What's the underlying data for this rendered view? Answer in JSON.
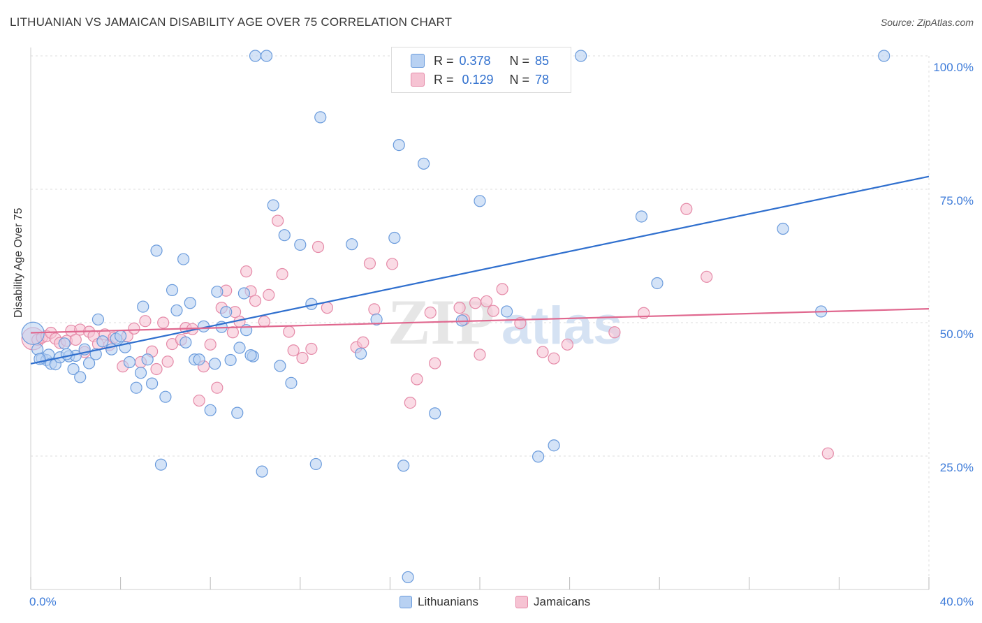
{
  "header": {
    "title": "LITHUANIAN VS JAMAICAN DISABILITY AGE OVER 75 CORRELATION CHART",
    "source": "Source: ZipAtlas.com"
  },
  "watermark": {
    "part1": "ZIP",
    "part2": "atlas"
  },
  "legend": {
    "rows": [
      {
        "r_label": "R =",
        "r_value": "0.378",
        "n_label": "N =",
        "n_value": "85"
      },
      {
        "r_label": "R =",
        "r_value": "0.129",
        "n_label": "N =",
        "n_value": "78"
      }
    ],
    "bottom": [
      "Lithuanians",
      "Jamaicans"
    ]
  },
  "colors": {
    "blue_fill": "#b8d1f2",
    "blue_stroke": "#6a9bdc",
    "blue_line": "#2f6fce",
    "pink_fill": "#f6c3d3",
    "pink_stroke": "#e58aa8",
    "pink_line": "#e0688f",
    "tick_text": "#3d7bd9"
  },
  "chart_data": {
    "type": "scatter",
    "title": "LITHUANIAN VS JAMAICAN DISABILITY AGE OVER 75 CORRELATION CHART",
    "xlabel": "",
    "ylabel": "Disability Age Over 75",
    "xlim": [
      0,
      40
    ],
    "ylim": [
      0,
      102
    ],
    "x_tick_labels": [
      "0.0%",
      "40.0%"
    ],
    "y_ticks": [
      25,
      50,
      75,
      100
    ],
    "y_tick_labels": [
      "25.0%",
      "50.0%",
      "75.0%",
      "100.0%"
    ],
    "grid": true,
    "legend_position": "top-center",
    "series": [
      {
        "name": "Lithuanians",
        "r": 0.378,
        "n": 85,
        "trend": {
          "x": [
            0,
            40
          ],
          "y": [
            42.3,
            77.4
          ]
        },
        "points": [
          [
            0.1,
            48.0
          ],
          [
            0.3,
            45.0
          ],
          [
            0.5,
            43.3
          ],
          [
            0.7,
            43.0
          ],
          [
            0.8,
            44.0
          ],
          [
            0.9,
            42.3
          ],
          [
            1.1,
            42.2
          ],
          [
            1.3,
            43.5
          ],
          [
            1.5,
            46.1
          ],
          [
            1.7,
            43.7
          ],
          [
            1.9,
            41.3
          ],
          [
            2.2,
            39.8
          ],
          [
            2.0,
            43.8
          ],
          [
            2.4,
            45.0
          ],
          [
            2.6,
            42.4
          ],
          [
            2.9,
            44.1
          ],
          [
            3.2,
            46.5
          ],
          [
            3.6,
            45.0
          ],
          [
            3.8,
            47.0
          ],
          [
            4.2,
            45.4
          ],
          [
            4.4,
            42.6
          ],
          [
            4.7,
            37.8
          ],
          [
            4.9,
            40.6
          ],
          [
            5.2,
            43.1
          ],
          [
            5.4,
            38.6
          ],
          [
            5.6,
            63.5
          ],
          [
            5.8,
            23.4
          ],
          [
            6.0,
            36.1
          ],
          [
            6.3,
            56.1
          ],
          [
            6.5,
            52.3
          ],
          [
            6.8,
            61.9
          ],
          [
            6.9,
            46.3
          ],
          [
            7.1,
            53.7
          ],
          [
            7.3,
            43.1
          ],
          [
            7.5,
            43.1
          ],
          [
            7.7,
            49.3
          ],
          [
            8.0,
            33.6
          ],
          [
            8.2,
            42.3
          ],
          [
            8.3,
            55.8
          ],
          [
            8.5,
            49.2
          ],
          [
            8.7,
            52.0
          ],
          [
            8.9,
            43.0
          ],
          [
            9.2,
            33.1
          ],
          [
            9.3,
            45.3
          ],
          [
            9.5,
            55.5
          ],
          [
            9.6,
            48.6
          ],
          [
            9.9,
            43.7
          ],
          [
            10.0,
            100.0
          ],
          [
            10.3,
            22.1
          ],
          [
            10.5,
            100.0
          ],
          [
            10.8,
            72.0
          ],
          [
            11.1,
            41.9
          ],
          [
            11.3,
            66.4
          ],
          [
            11.6,
            38.7
          ],
          [
            12.0,
            64.6
          ],
          [
            12.5,
            53.5
          ],
          [
            12.7,
            23.5
          ],
          [
            12.9,
            88.5
          ],
          [
            14.3,
            64.7
          ],
          [
            14.7,
            44.2
          ],
          [
            15.4,
            50.6
          ],
          [
            16.2,
            65.9
          ],
          [
            16.4,
            83.3
          ],
          [
            16.6,
            23.2
          ],
          [
            16.8,
            2.3
          ],
          [
            17.5,
            79.8
          ],
          [
            18.0,
            33.0
          ],
          [
            19.2,
            50.4
          ],
          [
            20.0,
            72.8
          ],
          [
            21.0,
            100.0
          ],
          [
            21.2,
            52.1
          ],
          [
            22.6,
            24.9
          ],
          [
            23.3,
            27.0
          ],
          [
            24.5,
            100.0
          ],
          [
            27.2,
            69.9
          ],
          [
            27.9,
            57.4
          ],
          [
            33.5,
            67.6
          ],
          [
            35.2,
            52.1
          ],
          [
            38.0,
            100.0
          ],
          [
            0.4,
            43.2
          ],
          [
            1.6,
            44.1
          ],
          [
            3.0,
            50.6
          ],
          [
            4.0,
            47.5
          ],
          [
            5.0,
            53.0
          ],
          [
            9.8,
            43.9
          ]
        ]
      },
      {
        "name": "Jamaicans",
        "r": 0.129,
        "n": 78,
        "trend": {
          "x": [
            0,
            40
          ],
          "y": [
            48.1,
            52.6
          ]
        },
        "points": [
          [
            0.1,
            47.0
          ],
          [
            0.3,
            46.8
          ],
          [
            0.5,
            47.2
          ],
          [
            0.7,
            47.5
          ],
          [
            0.9,
            48.1
          ],
          [
            1.1,
            47.0
          ],
          [
            1.3,
            46.2
          ],
          [
            1.6,
            46.6
          ],
          [
            1.8,
            48.5
          ],
          [
            2.0,
            46.8
          ],
          [
            2.2,
            48.7
          ],
          [
            2.4,
            44.5
          ],
          [
            2.6,
            48.3
          ],
          [
            2.8,
            47.5
          ],
          [
            3.0,
            46.0
          ],
          [
            3.3,
            47.8
          ],
          [
            3.5,
            45.8
          ],
          [
            3.7,
            47.2
          ],
          [
            4.1,
            41.8
          ],
          [
            4.3,
            47.5
          ],
          [
            4.6,
            48.9
          ],
          [
            4.9,
            42.6
          ],
          [
            5.1,
            50.3
          ],
          [
            5.4,
            44.6
          ],
          [
            5.6,
            41.3
          ],
          [
            5.9,
            50.0
          ],
          [
            6.1,
            42.7
          ],
          [
            6.3,
            46.0
          ],
          [
            6.7,
            46.8
          ],
          [
            6.9,
            49.0
          ],
          [
            7.2,
            48.8
          ],
          [
            7.5,
            35.4
          ],
          [
            7.7,
            41.8
          ],
          [
            8.0,
            45.9
          ],
          [
            8.3,
            37.8
          ],
          [
            8.5,
            52.8
          ],
          [
            8.7,
            56.0
          ],
          [
            9.0,
            48.2
          ],
          [
            9.3,
            50.2
          ],
          [
            9.6,
            59.6
          ],
          [
            9.8,
            55.9
          ],
          [
            10.0,
            54.1
          ],
          [
            10.4,
            50.2
          ],
          [
            10.6,
            55.2
          ],
          [
            11.0,
            69.1
          ],
          [
            11.2,
            59.1
          ],
          [
            11.5,
            48.3
          ],
          [
            11.7,
            44.8
          ],
          [
            12.1,
            43.4
          ],
          [
            12.5,
            45.1
          ],
          [
            12.8,
            64.2
          ],
          [
            13.2,
            52.8
          ],
          [
            14.5,
            45.4
          ],
          [
            14.8,
            46.3
          ],
          [
            15.1,
            61.1
          ],
          [
            15.3,
            52.5
          ],
          [
            16.1,
            61.0
          ],
          [
            16.9,
            35.0
          ],
          [
            17.2,
            39.4
          ],
          [
            17.8,
            51.9
          ],
          [
            18.0,
            42.4
          ],
          [
            19.1,
            52.8
          ],
          [
            19.3,
            50.6
          ],
          [
            19.8,
            53.7
          ],
          [
            20.0,
            44.0
          ],
          [
            20.3,
            54.0
          ],
          [
            21.0,
            56.3
          ],
          [
            21.8,
            49.9
          ],
          [
            22.8,
            44.5
          ],
          [
            23.3,
            43.3
          ],
          [
            23.9,
            45.9
          ],
          [
            26.0,
            48.2
          ],
          [
            27.3,
            51.8
          ],
          [
            29.2,
            71.3
          ],
          [
            30.1,
            58.6
          ],
          [
            35.5,
            25.5
          ],
          [
            20.6,
            52.2
          ],
          [
            9.1,
            52.0
          ]
        ]
      }
    ]
  }
}
